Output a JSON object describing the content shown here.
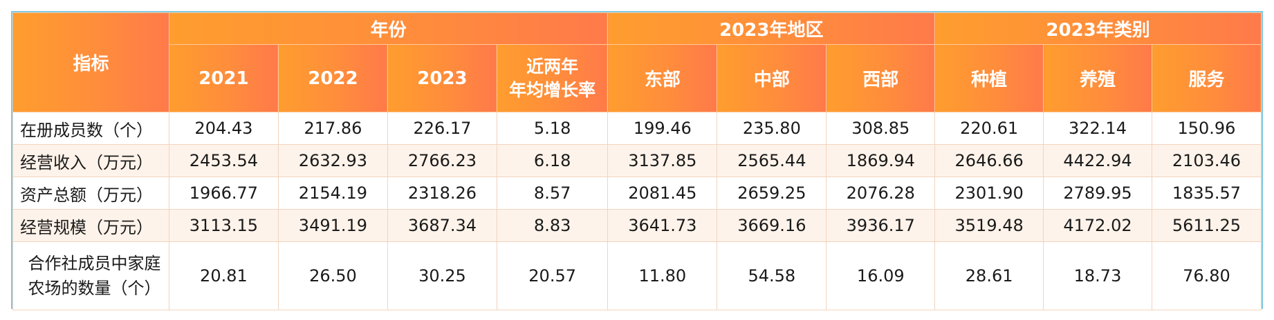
{
  "header": {
    "indicator": "指标",
    "group_year": "年份",
    "group_region": "2023年地区",
    "group_category": "2023年类别",
    "columns": [
      "2021",
      "2022",
      "2023",
      "近两年\n年均增长率",
      "东部",
      "中部",
      "西部",
      "种植",
      "养殖",
      "服务"
    ],
    "col_rate_line1": "近两年",
    "col_rate_line2": "年均增长率"
  },
  "rows": [
    {
      "label": "在册成员数（个）",
      "values": [
        "204.43",
        "217.86",
        "226.17",
        "5.18",
        "199.46",
        "235.80",
        "308.85",
        "220.61",
        "322.14",
        "150.96"
      ]
    },
    {
      "label": "经营收入（万元）",
      "values": [
        "2453.54",
        "2632.93",
        "2766.23",
        "6.18",
        "3137.85",
        "2565.44",
        "1869.94",
        "2646.66",
        "4422.94",
        "2103.46"
      ]
    },
    {
      "label": "资产总额（万元）",
      "values": [
        "1966.77",
        "2154.19",
        "2318.26",
        "8.57",
        "2081.45",
        "2659.25",
        "2076.28",
        "2301.90",
        "2789.95",
        "1835.57"
      ]
    },
    {
      "label": "经营规模（万元）",
      "values": [
        "3113.15",
        "3491.19",
        "3687.34",
        "8.83",
        "3641.73",
        "3669.16",
        "3936.17",
        "3519.48",
        "4172.02",
        "5611.25"
      ]
    },
    {
      "label": "合作社成员中家庭农场的数量（个）",
      "label_line1": "合作社成员中家庭",
      "label_line2": "农场的数量（个）",
      "values": [
        "20.81",
        "26.50",
        "30.25",
        "20.57",
        "11.80",
        "54.58",
        "16.09",
        "28.61",
        "18.73",
        "76.80"
      ]
    }
  ]
}
